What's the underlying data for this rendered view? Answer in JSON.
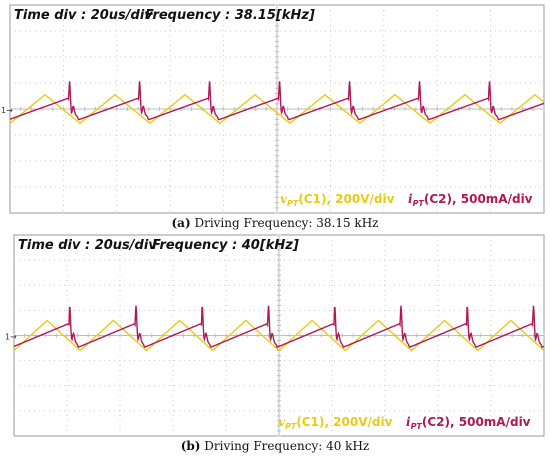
{
  "chart_data": [
    {
      "type": "line",
      "header": {
        "time_div": "Time div : 20us/div",
        "frequency": "Frequency : 38.15[kHz]"
      },
      "caption": {
        "label": "(a)",
        "text": " Driving Frequency: 38.15 kHz"
      },
      "channel_marker": "1→",
      "divisions": {
        "x": 10,
        "y": 8
      },
      "time_per_div_us": 20,
      "frequency_khz": 38.15,
      "series": [
        {
          "name": "vPT(C1), 200V/div",
          "var": "v",
          "sub": "PT",
          "rest": "(C1), 200V/div",
          "color": "#e8cc14",
          "shape": "triangle",
          "amplitude_div": 0.55,
          "phase": 0.0
        },
        {
          "name": "iPT(C2), 500mA/div",
          "var": "i",
          "sub": "PT",
          "rest": "(C2), 500mA/div",
          "color": "#b01858",
          "shape": "ringing",
          "amplitude_div": 0.75,
          "phase": 0.02
        }
      ]
    },
    {
      "type": "line",
      "header": {
        "time_div": "Time div : 20us/div",
        "frequency": "Frequency : 40[kHz]"
      },
      "caption": {
        "label": "(b)",
        "text": " Driving Frequency: 40 kHz"
      },
      "channel_marker": "1→",
      "divisions": {
        "x": 10,
        "y": 8
      },
      "time_per_div_us": 20,
      "frequency_khz": 40,
      "series": [
        {
          "name": "vPT(C1), 200V/div",
          "var": "v",
          "sub": "PT",
          "rest": "(C1), 200V/div",
          "color": "#e8cc14",
          "shape": "triangle",
          "amplitude_div": 0.6,
          "phase": 0.0
        },
        {
          "name": "iPT(C2), 500mA/div",
          "var": "i",
          "sub": "PT",
          "rest": "(C2), 500mA/div",
          "color": "#b01858",
          "shape": "ringing",
          "amplitude_div": 0.85,
          "phase": 0.03
        }
      ]
    }
  ]
}
